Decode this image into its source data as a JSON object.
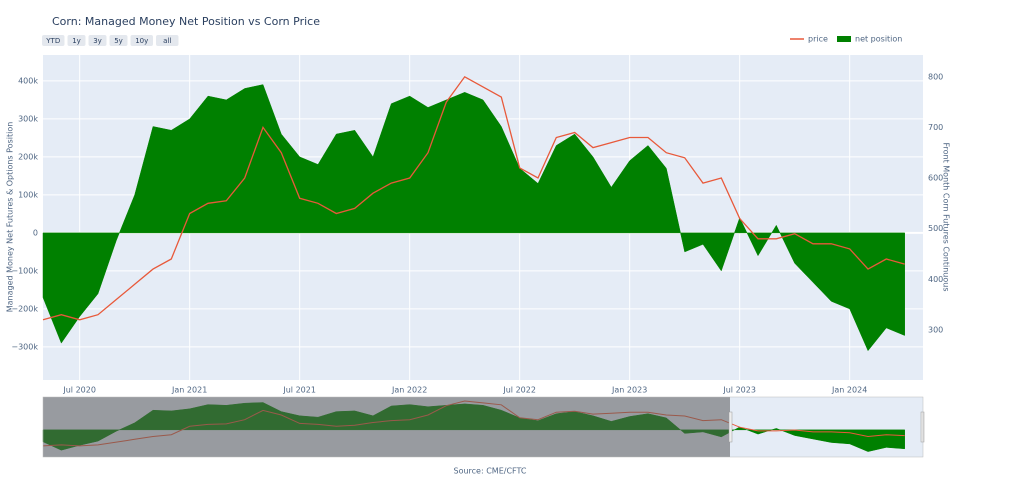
{
  "chart_data": {
    "type": "line",
    "title": "Corn: Managed Money Net Position vs Corn Price",
    "source": "Source: CME/CFTC",
    "range_buttons": [
      "YTD",
      "1y",
      "3y",
      "5y",
      "10y",
      "all"
    ],
    "y_label": "Managed Money Net Futures & Options Position",
    "y2_label": "Front Month Corn Futures Continuous",
    "x": [
      "2020-05",
      "2020-06",
      "2020-07",
      "2020-08",
      "2020-09",
      "2020-10",
      "2020-11",
      "2020-12",
      "2021-01",
      "2021-02",
      "2021-03",
      "2021-04",
      "2021-05",
      "2021-06",
      "2021-07",
      "2021-08",
      "2021-09",
      "2021-10",
      "2021-11",
      "2021-12",
      "2022-01",
      "2022-02",
      "2022-03",
      "2022-04",
      "2022-05",
      "2022-06",
      "2022-07",
      "2022-08",
      "2022-09",
      "2022-10",
      "2022-11",
      "2022-12",
      "2023-01",
      "2023-02",
      "2023-03",
      "2023-04",
      "2023-05",
      "2023-06",
      "2023-07",
      "2023-08",
      "2023-09",
      "2023-10",
      "2023-11",
      "2023-12",
      "2024-01",
      "2024-02",
      "2024-03",
      "2024-04"
    ],
    "xlim": [
      "2020-05",
      "2024-05"
    ],
    "xticks": [
      {
        "value": "2020-07",
        "label": "Jul 2020"
      },
      {
        "value": "2021-01",
        "label": "Jan 2021"
      },
      {
        "value": "2021-07",
        "label": "Jul 2021"
      },
      {
        "value": "2022-01",
        "label": "Jan 2022"
      },
      {
        "value": "2022-07",
        "label": "Jul 2022"
      },
      {
        "value": "2023-01",
        "label": "Jan 2023"
      },
      {
        "value": "2023-07",
        "label": "Jul 2023"
      },
      {
        "value": "2024-01",
        "label": "Jan 2024"
      }
    ],
    "ylim": [
      -387000,
      468000
    ],
    "yticks": [
      {
        "value": -300000,
        "label": "−300k"
      },
      {
        "value": -200000,
        "label": "−200k"
      },
      {
        "value": -100000,
        "label": "−100k"
      },
      0,
      {
        "value": 100000,
        "label": "100k"
      },
      {
        "value": 200000,
        "label": "200k"
      },
      {
        "value": 300000,
        "label": "300k"
      },
      {
        "value": 400000,
        "label": "400k"
      }
    ],
    "y2lim": [
      201,
      843
    ],
    "y2ticks": [
      300,
      400,
      500,
      600,
      700,
      800
    ],
    "grid": true,
    "legend": "top-right",
    "series": [
      {
        "name": "price",
        "type": "line",
        "axis": "y2",
        "color": "#e8593a",
        "values": [
          320,
          330,
          320,
          330,
          360,
          390,
          420,
          440,
          530,
          550,
          555,
          600,
          700,
          650,
          560,
          550,
          530,
          540,
          570,
          590,
          600,
          650,
          750,
          800,
          780,
          760,
          620,
          600,
          680,
          690,
          660,
          670,
          680,
          680,
          650,
          640,
          590,
          600,
          520,
          480,
          480,
          490,
          470,
          470,
          460,
          420,
          440,
          430
        ]
      },
      {
        "name": "net position",
        "type": "area",
        "axis": "y",
        "color": "#008000",
        "values": [
          -170000,
          -290000,
          -220000,
          -160000,
          -20000,
          100000,
          280000,
          270000,
          300000,
          360000,
          350000,
          380000,
          390000,
          260000,
          200000,
          180000,
          260000,
          270000,
          200000,
          340000,
          360000,
          330000,
          350000,
          370000,
          350000,
          280000,
          170000,
          130000,
          230000,
          260000,
          200000,
          120000,
          190000,
          230000,
          170000,
          -50000,
          -30000,
          -100000,
          40000,
          -60000,
          20000,
          -80000,
          -130000,
          -180000,
          -200000,
          -310000,
          -250000,
          -270000
        ]
      }
    ]
  }
}
